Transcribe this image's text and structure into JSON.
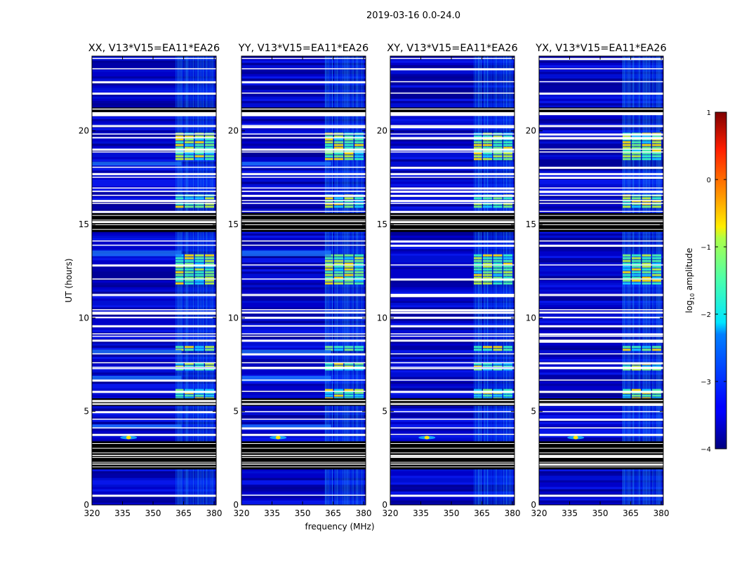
{
  "figure": {
    "suptitle": "2019-03-16 0.0-24.0"
  },
  "chart_data": {
    "type": "heatmap",
    "xlabel": "frequency (MHz)",
    "ylabel": "UT (hours)",
    "xlim": [
      320,
      381
    ],
    "ylim": [
      0,
      24
    ],
    "xticks": [
      320,
      335,
      350,
      365,
      380
    ],
    "yticks": [
      0,
      5,
      10,
      15,
      20
    ],
    "panels": [
      {
        "title": "XX, V13*V15=EA11*EA26",
        "pol": "XX"
      },
      {
        "title": "YY, V13*V15=EA11*EA26",
        "pol": "YY"
      },
      {
        "title": "XY, V13*V15=EA11*EA26",
        "pol": "XY"
      },
      {
        "title": "YX, V13*V15=EA11*EA26",
        "pol": "YX"
      }
    ],
    "colorbar": {
      "label": "log10 amplitude",
      "label_prefix": "log",
      "label_sub": "10",
      "label_suffix": " amplitude",
      "range": [
        -4,
        1
      ],
      "ticks": [
        1,
        0,
        -1,
        -2,
        -3,
        -4
      ],
      "colormap": "jet"
    },
    "flagged_ut_ranges": [
      [
        1.9,
        3.4
      ],
      [
        5.3,
        5.7
      ],
      [
        14.6,
        15.6
      ],
      [
        20.85,
        21.25
      ]
    ],
    "rfi_bands_mhz": [
      [
        361,
        365
      ],
      [
        365.5,
        370
      ],
      [
        370.5,
        375
      ],
      [
        375.5,
        380
      ]
    ],
    "strong_rfi_ut_ranges": [
      [
        5.7,
        6.2
      ],
      [
        7.2,
        7.6
      ],
      [
        8.3,
        8.5
      ],
      [
        11.8,
        13.4
      ],
      [
        15.9,
        16.6
      ],
      [
        18.4,
        19.9
      ]
    ],
    "source_spot": {
      "freq_mhz": 338,
      "ut": 3.6
    }
  }
}
